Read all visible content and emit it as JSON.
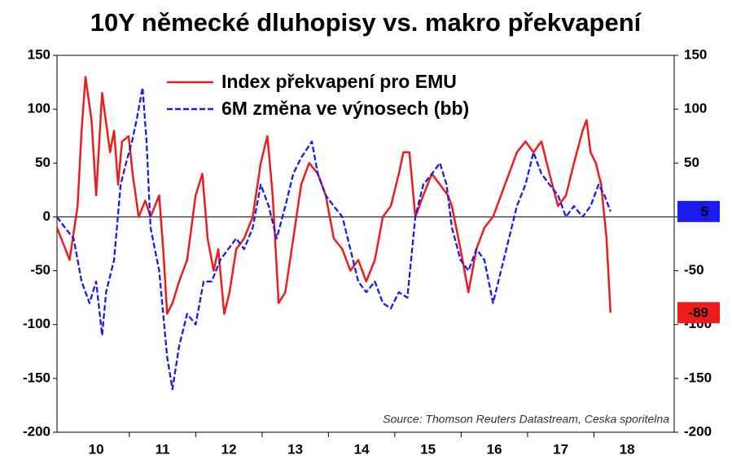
{
  "chart_data": {
    "type": "line",
    "title": "10Y německé dluhopisy vs. makro překvapení",
    "annotation": "Source: Thomson Reuters Datastream, Ceska sporitelna",
    "xlim": [
      9.91,
      19.21
    ],
    "xticks": [
      {
        "value": 10.5,
        "label": "10"
      },
      {
        "value": 11.5,
        "label": "11"
      },
      {
        "value": 12.5,
        "label": "12"
      },
      {
        "value": 13.5,
        "label": "13"
      },
      {
        "value": 14.5,
        "label": "14"
      },
      {
        "value": 15.5,
        "label": "15"
      },
      {
        "value": 16.5,
        "label": "16"
      },
      {
        "value": 17.5,
        "label": "17"
      },
      {
        "value": 18.5,
        "label": "18"
      }
    ],
    "ylim": [
      -200,
      150
    ],
    "yticks": [
      -200,
      -150,
      -100,
      -50,
      0,
      50,
      100,
      150
    ],
    "y2lim": [
      -200,
      150
    ],
    "y2ticks": [
      -200,
      -150,
      -100,
      -50,
      0,
      50,
      100,
      150
    ],
    "legend": "top",
    "series": [
      {
        "name": "Index překvapení pro EMU",
        "color": "#ee1c1c",
        "dash": false,
        "x": [
          9.91,
          10.1,
          10.22,
          10.28,
          10.34,
          10.43,
          10.5,
          10.59,
          10.71,
          10.77,
          10.83,
          10.89,
          10.99,
          11.05,
          11.14,
          11.24,
          11.32,
          11.45,
          11.51,
          11.57,
          11.65,
          11.75,
          11.87,
          12.0,
          12.1,
          12.18,
          12.27,
          12.34,
          12.43,
          12.51,
          12.61,
          12.73,
          12.86,
          12.98,
          13.08,
          13.16,
          13.25,
          13.35,
          13.47,
          13.59,
          13.71,
          13.84,
          13.96,
          14.08,
          14.21,
          14.33,
          14.45,
          14.57,
          14.7,
          14.82,
          14.94,
          15.06,
          15.13,
          15.22,
          15.31,
          15.43,
          15.56,
          15.68,
          15.8,
          15.86,
          15.99,
          16.11,
          16.23,
          16.35,
          16.48,
          16.6,
          16.72,
          16.84,
          16.97,
          17.09,
          17.21,
          17.33,
          17.46,
          17.58,
          17.7,
          17.83,
          17.89,
          17.95,
          18.03,
          18.11,
          18.19,
          18.25
        ],
        "values": [
          -10,
          -40,
          10,
          80,
          130,
          90,
          20,
          115,
          60,
          80,
          30,
          70,
          75,
          40,
          0,
          15,
          0,
          20,
          -30,
          -90,
          -80,
          -60,
          -40,
          20,
          40,
          -20,
          -50,
          -30,
          -90,
          -70,
          -30,
          -20,
          0,
          50,
          75,
          20,
          -80,
          -70,
          -20,
          30,
          50,
          40,
          20,
          -20,
          -30,
          -50,
          -40,
          -60,
          -40,
          0,
          10,
          40,
          60,
          60,
          0,
          20,
          40,
          30,
          20,
          10,
          -30,
          -70,
          -30,
          -10,
          0,
          20,
          40,
          60,
          70,
          60,
          70,
          40,
          10,
          20,
          50,
          80,
          90,
          60,
          50,
          30,
          -20,
          -89
        ]
      },
      {
        "name": "6M změna ve výnosech (bb)",
        "color": "#1a1aee",
        "dash": true,
        "x": [
          9.91,
          10.03,
          10.16,
          10.28,
          10.4,
          10.5,
          10.59,
          10.65,
          10.77,
          10.87,
          10.95,
          11.04,
          11.11,
          11.2,
          11.26,
          11.32,
          11.45,
          11.57,
          11.65,
          11.75,
          11.87,
          12.0,
          12.12,
          12.24,
          12.37,
          12.49,
          12.61,
          12.73,
          12.86,
          12.98,
          13.1,
          13.22,
          13.35,
          13.47,
          13.59,
          13.75,
          13.84,
          13.96,
          14.08,
          14.21,
          14.33,
          14.45,
          14.57,
          14.7,
          14.82,
          14.94,
          15.06,
          15.19,
          15.31,
          15.43,
          15.56,
          15.68,
          15.78,
          15.86,
          15.99,
          16.11,
          16.23,
          16.35,
          16.48,
          16.6,
          16.72,
          16.84,
          16.97,
          17.09,
          17.21,
          17.33,
          17.46,
          17.58,
          17.7,
          17.83,
          17.95,
          18.07,
          18.16,
          18.25
        ],
        "values": [
          0,
          -10,
          -20,
          -60,
          -80,
          -60,
          -110,
          -70,
          -40,
          30,
          50,
          70,
          90,
          120,
          70,
          -10,
          -50,
          -130,
          -160,
          -120,
          -90,
          -100,
          -60,
          -60,
          -40,
          -30,
          -20,
          -30,
          -10,
          30,
          10,
          -20,
          10,
          40,
          55,
          70,
          40,
          20,
          10,
          0,
          -30,
          -60,
          -70,
          -60,
          -80,
          -85,
          -70,
          -75,
          0,
          30,
          40,
          50,
          30,
          -10,
          -40,
          -50,
          -30,
          -40,
          -80,
          -50,
          -20,
          10,
          30,
          60,
          40,
          30,
          20,
          0,
          10,
          0,
          10,
          30,
          20,
          5
        ]
      }
    ]
  }
}
